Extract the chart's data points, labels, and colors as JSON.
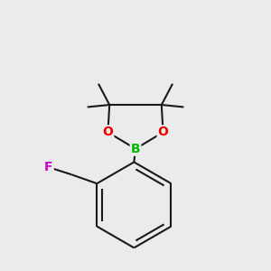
{
  "background_color": "#ebebeb",
  "bond_color": "#1a1a1a",
  "bond_width": 1.5,
  "dbo": 0.018,
  "atom_colors": {
    "B": "#00bb00",
    "O": "#ee0000",
    "F": "#cc00cc",
    "C": "#1a1a1a"
  },
  "atom_fontsizes": {
    "B": 10,
    "O": 10,
    "F": 10
  },
  "figsize": [
    3.0,
    3.0
  ],
  "dpi": 100,
  "xlim": [
    0.05,
    0.95
  ],
  "ylim": [
    0.05,
    0.95
  ]
}
